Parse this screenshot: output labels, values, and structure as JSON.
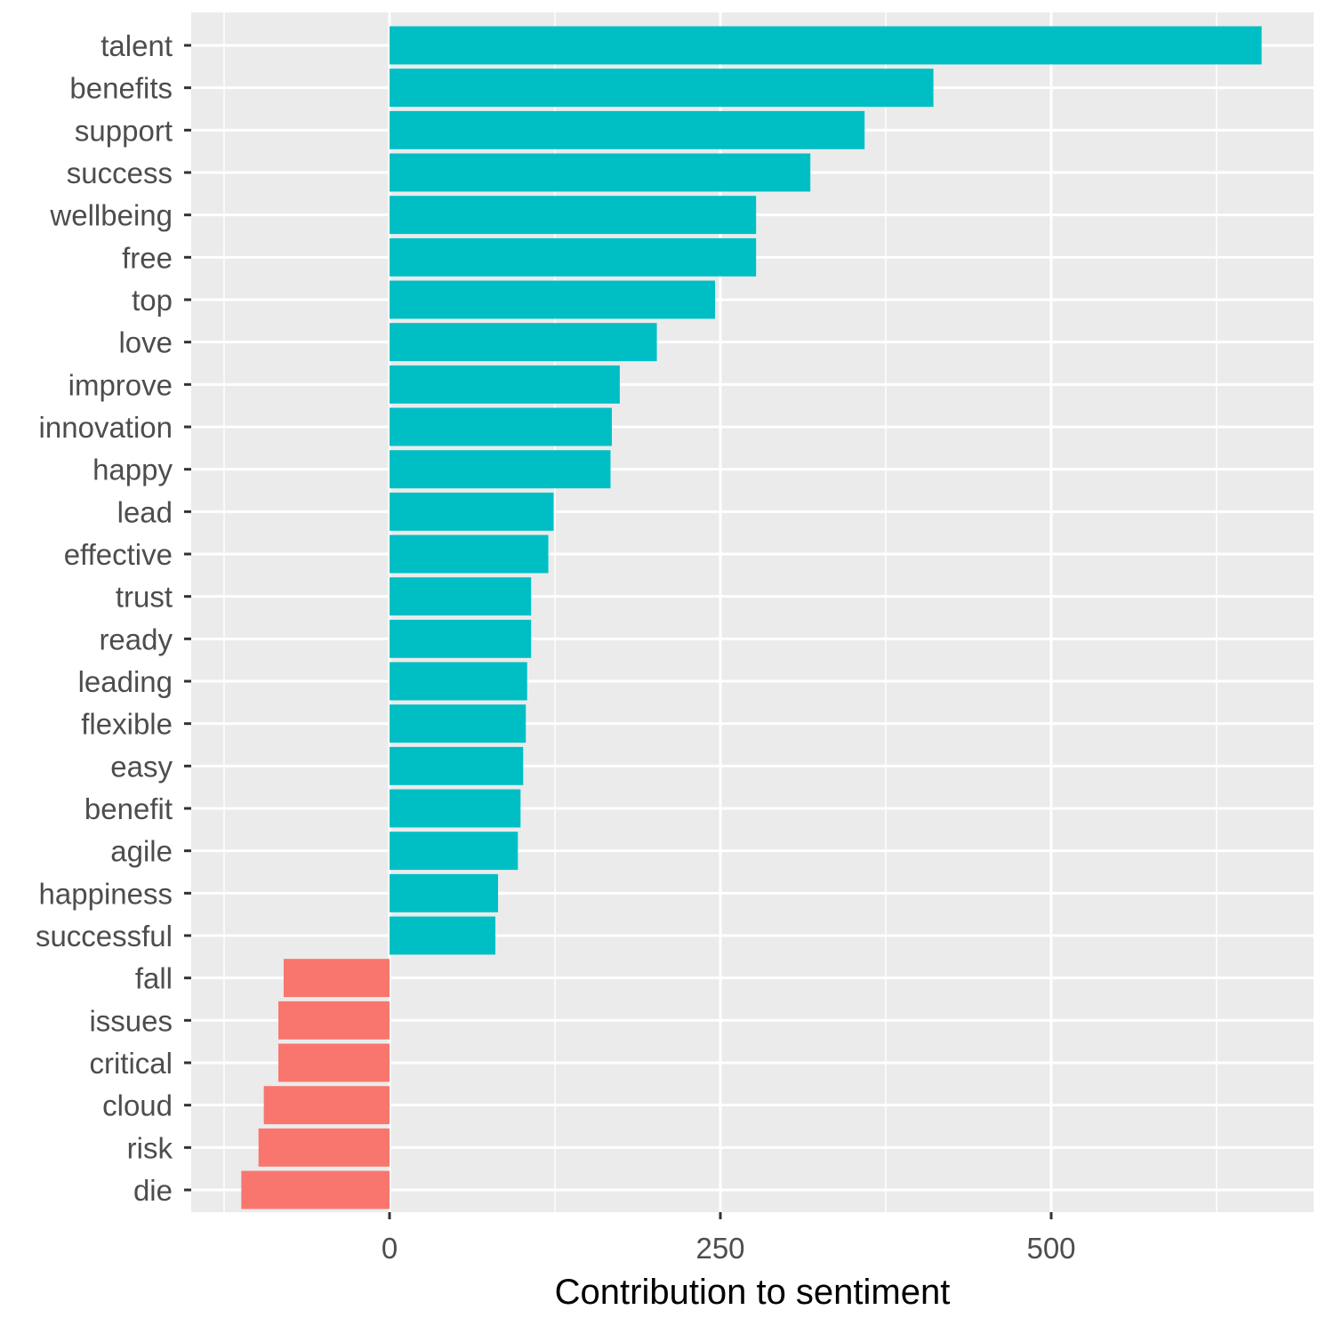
{
  "chart_data": {
    "type": "bar",
    "orientation": "horizontal",
    "xlabel": "Contribution to sentiment",
    "ylabel": "",
    "xlim": [
      -150,
      700
    ],
    "x_ticks": [
      0,
      250,
      500
    ],
    "x_tick_labels": [
      "0",
      "250",
      "500"
    ],
    "grid": true,
    "legend": "none",
    "colors": {
      "panel_background": "#ebebeb",
      "grid_line": "#ffffff",
      "positive": "#00bfc4",
      "negative": "#f8766d",
      "tick_label": "#4d4d4d",
      "tick_mark": "#333333"
    },
    "categories": [
      "talent",
      "benefits",
      "support",
      "success",
      "wellbeing",
      "free",
      "top",
      "love",
      "improve",
      "innovation",
      "happy",
      "lead",
      "effective",
      "trust",
      "ready",
      "leading",
      "flexible",
      "easy",
      "benefit",
      "agile",
      "happiness",
      "successful",
      "fall",
      "issues",
      "critical",
      "cloud",
      "risk",
      "die"
    ],
    "values": [
      659,
      411,
      359,
      318,
      277,
      277,
      246,
      202,
      174,
      168,
      167,
      124,
      120,
      107,
      107,
      104,
      103,
      101,
      99,
      97,
      82,
      80,
      -80,
      -84,
      -84,
      -95,
      -99,
      -112
    ],
    "sentiment": [
      "positive",
      "positive",
      "positive",
      "positive",
      "positive",
      "positive",
      "positive",
      "positive",
      "positive",
      "positive",
      "positive",
      "positive",
      "positive",
      "positive",
      "positive",
      "positive",
      "positive",
      "positive",
      "positive",
      "positive",
      "positive",
      "positive",
      "negative",
      "negative",
      "negative",
      "negative",
      "negative",
      "negative"
    ]
  }
}
